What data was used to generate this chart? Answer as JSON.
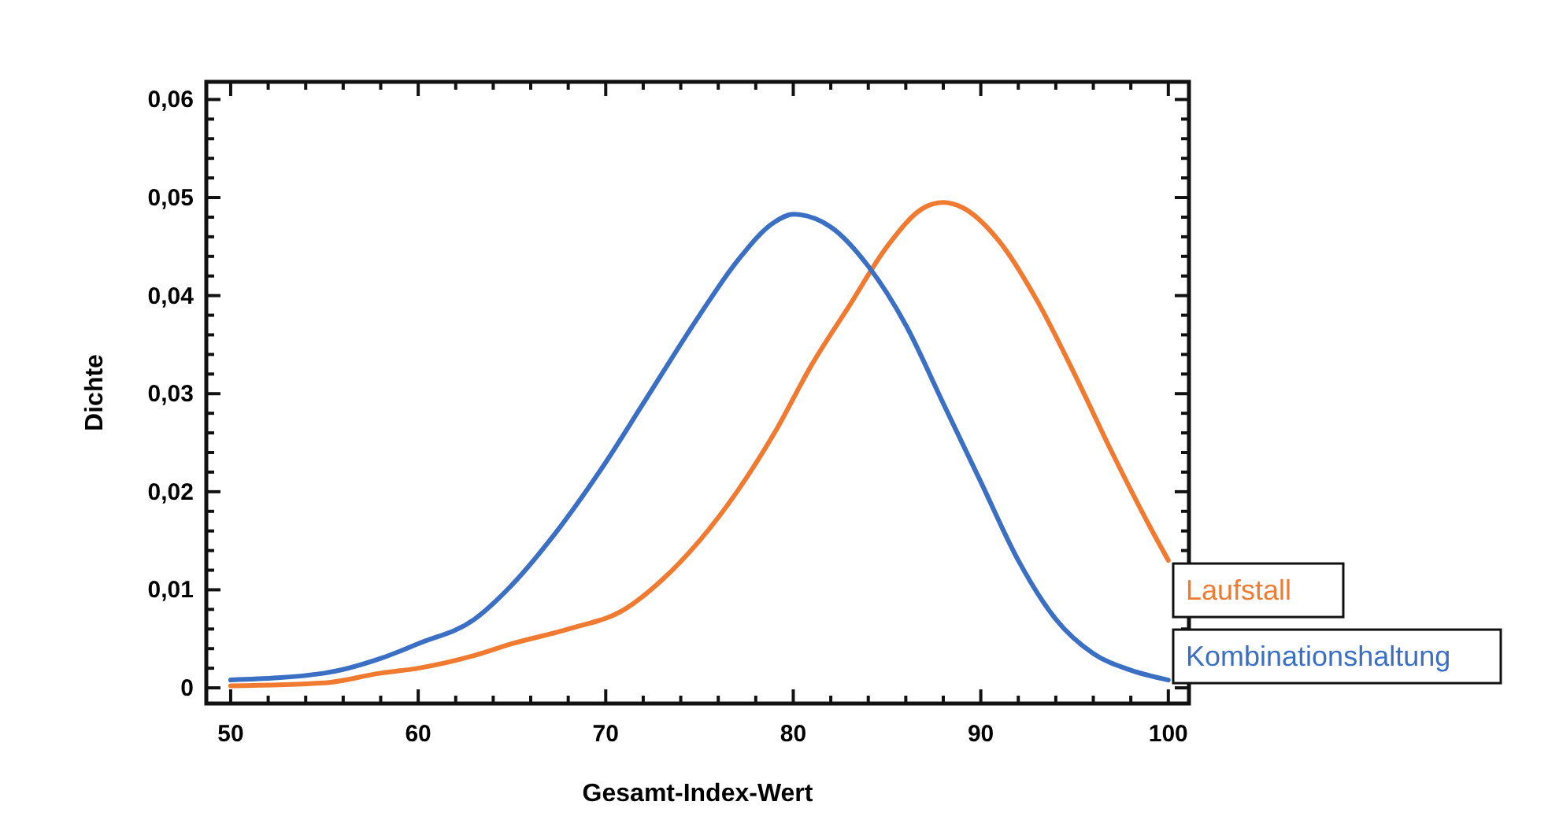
{
  "chart_data": {
    "type": "line",
    "xlabel": "Gesamt-Index-Wert",
    "ylabel": "Dichte",
    "xlim": [
      48.7,
      101.1
    ],
    "ylim": [
      -0.0016,
      0.0618
    ],
    "xticks": [
      50,
      {
        "value": 52,
        "label": null
      },
      {
        "value": 54,
        "label": null
      },
      {
        "value": 56,
        "label": null
      },
      {
        "value": 58,
        "label": null
      },
      60,
      {
        "value": 62,
        "label": null
      },
      {
        "value": 64,
        "label": null
      },
      {
        "value": 66,
        "label": null
      },
      {
        "value": 68,
        "label": null
      },
      70,
      {
        "value": 72,
        "label": null
      },
      {
        "value": 74,
        "label": null
      },
      {
        "value": 76,
        "label": null
      },
      {
        "value": 78,
        "label": null
      },
      80,
      {
        "value": 82,
        "label": null
      },
      {
        "value": 84,
        "label": null
      },
      {
        "value": 86,
        "label": null
      },
      {
        "value": 88,
        "label": null
      },
      90,
      {
        "value": 92,
        "label": null
      },
      {
        "value": 94,
        "label": null
      },
      {
        "value": 96,
        "label": null
      },
      {
        "value": 98,
        "label": null
      },
      100
    ],
    "yticks": [
      0,
      {
        "value": 0.002,
        "label": null
      },
      {
        "value": 0.004,
        "label": null
      },
      {
        "value": 0.006,
        "label": null
      },
      {
        "value": 0.008,
        "label": null
      },
      {
        "value": 0.01,
        "label": "0,01"
      },
      {
        "value": 0.012,
        "label": null
      },
      {
        "value": 0.014,
        "label": null
      },
      {
        "value": 0.016,
        "label": null
      },
      {
        "value": 0.018,
        "label": null
      },
      {
        "value": 0.02,
        "label": "0,02"
      },
      {
        "value": 0.022,
        "label": null
      },
      {
        "value": 0.024,
        "label": null
      },
      {
        "value": 0.026,
        "label": null
      },
      {
        "value": 0.028,
        "label": null
      },
      {
        "value": 0.03,
        "label": "0,03"
      },
      {
        "value": 0.032,
        "label": null
      },
      {
        "value": 0.034,
        "label": null
      },
      {
        "value": 0.036,
        "label": null
      },
      {
        "value": 0.038,
        "label": null
      },
      {
        "value": 0.04,
        "label": "0,04"
      },
      {
        "value": 0.042,
        "label": null
      },
      {
        "value": 0.044,
        "label": null
      },
      {
        "value": 0.046,
        "label": null
      },
      {
        "value": 0.048,
        "label": null
      },
      {
        "value": 0.05,
        "label": "0,05"
      },
      {
        "value": 0.052,
        "label": null
      },
      {
        "value": 0.054,
        "label": null
      },
      {
        "value": 0.056,
        "label": null
      },
      {
        "value": 0.058,
        "label": null
      },
      {
        "value": 0.06,
        "label": "0,06"
      }
    ],
    "grid": false,
    "legend": false,
    "marker": "none",
    "line_style": "solid",
    "series": [
      {
        "name": "Laufstall",
        "color": "#f07a30",
        "x": [
          50,
          55,
          58,
          60,
          63,
          65,
          68,
          71,
          73,
          75,
          77,
          79,
          81,
          83,
          85,
          87,
          88,
          89,
          91,
          93,
          95,
          97,
          99,
          100
        ],
        "values": [
          0.0002,
          0.0005,
          0.0015,
          0.002,
          0.0033,
          0.0045,
          0.006,
          0.008,
          0.011,
          0.015,
          0.02,
          0.026,
          0.033,
          0.039,
          0.045,
          0.049,
          0.0495,
          0.049,
          0.0455,
          0.0395,
          0.032,
          0.024,
          0.0165,
          0.013
        ]
      },
      {
        "name": "Kombinationshaltung",
        "color": "#3a6fc4",
        "x": [
          50,
          55,
          58,
          60,
          63,
          65,
          67,
          70,
          72,
          75,
          77,
          79,
          80,
          82,
          84,
          86,
          88,
          90,
          92,
          94,
          96,
          98,
          100
        ],
        "values": [
          0.0008,
          0.0015,
          0.003,
          0.0045,
          0.007,
          0.0105,
          0.015,
          0.023,
          0.029,
          0.038,
          0.0435,
          0.0475,
          0.0483,
          0.047,
          0.043,
          0.037,
          0.029,
          0.021,
          0.013,
          0.007,
          0.0035,
          0.0018,
          0.0008
        ]
      }
    ]
  }
}
